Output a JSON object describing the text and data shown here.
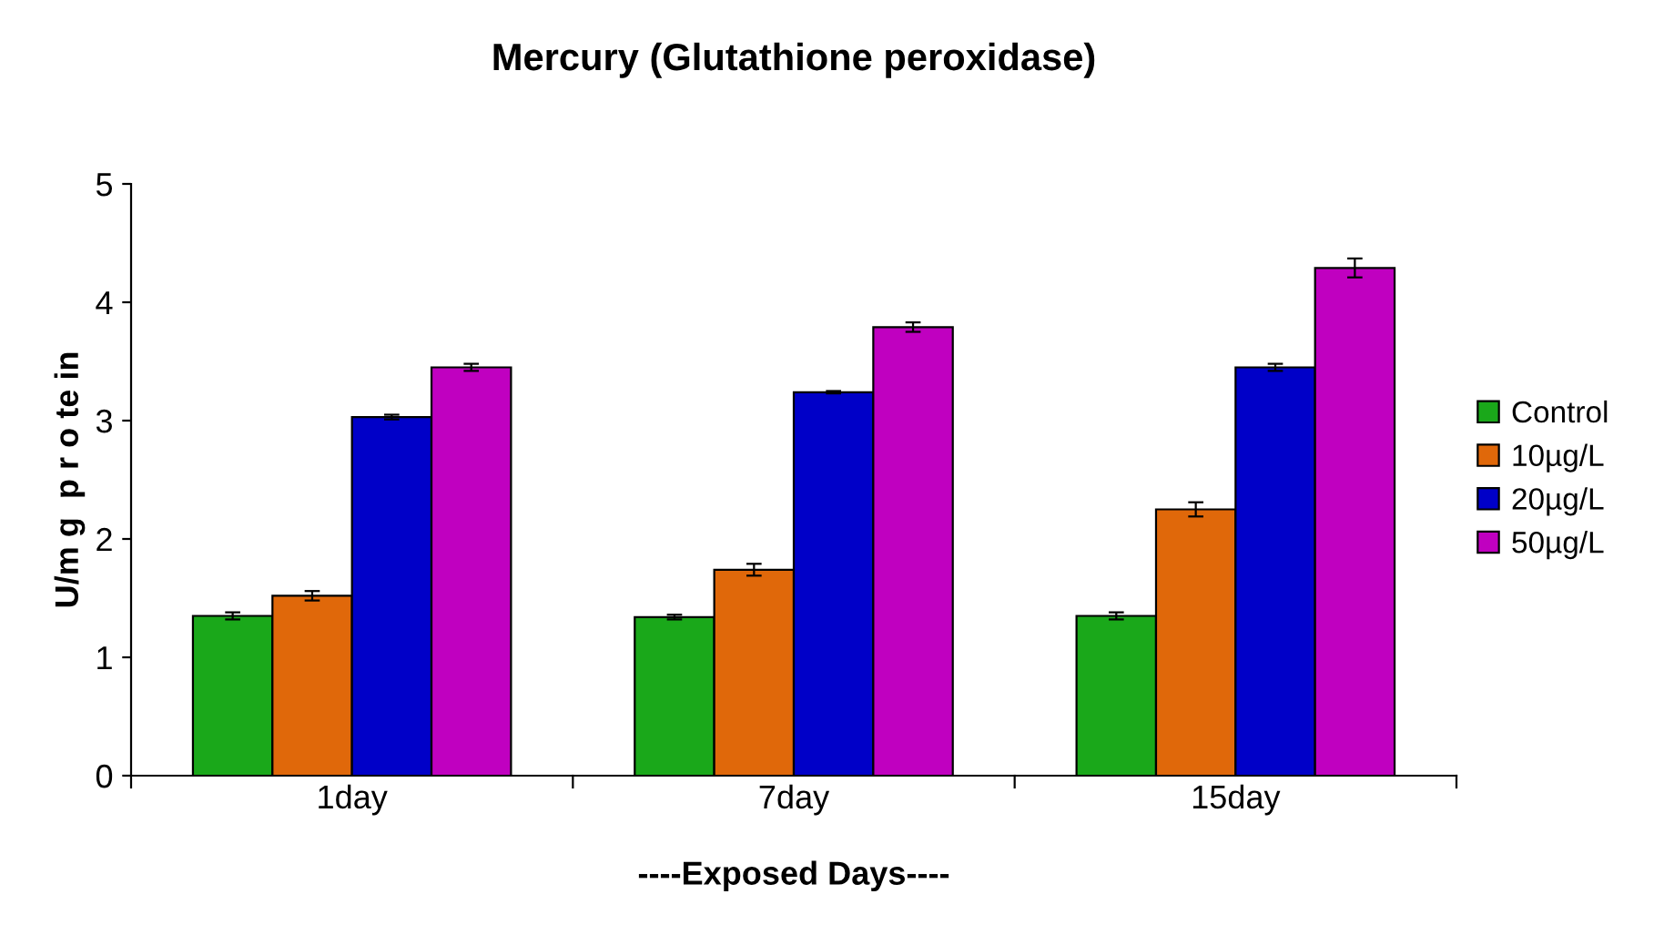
{
  "chart_data": {
    "type": "bar",
    "title": "Mercury (Glutathione peroxidase)",
    "xlabel": "----Exposed Days----",
    "ylabel": "U/m g  p r o te in",
    "categories": [
      "1day",
      "7day",
      "15day"
    ],
    "series": [
      {
        "name": "Control",
        "color": "#1aa81a",
        "values": [
          1.35,
          1.34,
          1.35
        ],
        "errors": [
          0.03,
          0.02,
          0.03
        ]
      },
      {
        "name": "10µg/L",
        "color": "#e0680a",
        "values": [
          1.52,
          1.74,
          2.25
        ],
        "errors": [
          0.04,
          0.05,
          0.06
        ]
      },
      {
        "name": "20µg/L",
        "color": "#0000c8",
        "values": [
          3.03,
          3.24,
          3.45
        ],
        "errors": [
          0.02,
          0.01,
          0.03
        ]
      },
      {
        "name": "50µg/L",
        "color": "#c000c0",
        "values": [
          3.45,
          3.79,
          4.29
        ],
        "errors": [
          0.03,
          0.04,
          0.08
        ]
      }
    ],
    "ylim": [
      0,
      5
    ],
    "yticks": [
      0,
      1,
      2,
      3,
      4,
      5
    ],
    "legend": "right",
    "grid": false
  }
}
